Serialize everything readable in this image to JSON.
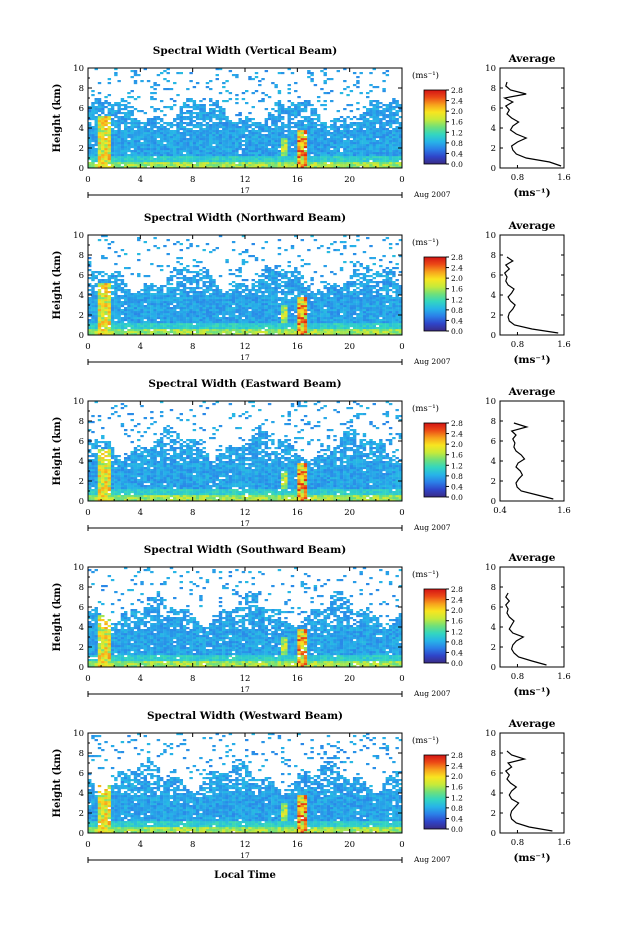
{
  "figure": {
    "xlabel": "Local Time",
    "date_day": "17",
    "date_month": "Aug 2007"
  },
  "colorscale": {
    "unit": "(ms⁻¹)",
    "ticks": [
      "0.0",
      "0.4",
      "0.8",
      "1.2",
      "1.6",
      "2.0",
      "2.4",
      "2.8"
    ],
    "stops": [
      "#3a2b86",
      "#2f45c9",
      "#2b7fe8",
      "#27b4e8",
      "#33d6c0",
      "#6fe07a",
      "#c6ea3a",
      "#f8e520",
      "#f7a21c",
      "#ec4a16",
      "#d41414"
    ]
  },
  "chart_data": [
    {
      "type": "heatmap",
      "title": "Spectral Width (Vertical Beam)",
      "ylabel": "Height (km)",
      "xlim": [
        0,
        24
      ],
      "ylim": [
        0,
        10
      ],
      "x_ticks": [
        "0",
        "4",
        "8",
        "12",
        "16",
        "20",
        "0"
      ],
      "y_ticks": [
        "0",
        "2",
        "4",
        "6",
        "8",
        "10"
      ],
      "profile": {
        "title": "Average",
        "xlabel": "(ms⁻¹)",
        "xlim": [
          0.5,
          1.6
        ],
        "x_ticks": [
          "0.8",
          "1.6"
        ],
        "y_ticks": [
          "0",
          "2",
          "4",
          "6",
          "8",
          "10"
        ],
        "heights": [
          0.2,
          0.6,
          1.0,
          1.4,
          1.8,
          2.2,
          2.6,
          3.0,
          3.4,
          3.8,
          4.2,
          4.6,
          5.0,
          5.4,
          5.8,
          6.2,
          6.6,
          7.0,
          7.4,
          7.8,
          8.2,
          8.6
        ],
        "values": [
          1.55,
          1.35,
          0.95,
          0.78,
          0.72,
          0.7,
          0.8,
          0.95,
          0.78,
          0.68,
          0.72,
          0.82,
          0.7,
          0.62,
          0.66,
          0.6,
          0.72,
          0.58,
          0.95,
          0.68,
          0.6,
          0.62
        ]
      }
    },
    {
      "type": "heatmap",
      "title": "Spectral Width (Northward Beam)",
      "ylabel": "Height (km)",
      "xlim": [
        0,
        24
      ],
      "ylim": [
        0,
        10
      ],
      "x_ticks": [
        "0",
        "4",
        "8",
        "12",
        "16",
        "20",
        "0"
      ],
      "y_ticks": [
        "0",
        "2",
        "4",
        "6",
        "8",
        "10"
      ],
      "profile": {
        "title": "Average",
        "xlabel": "(ms⁻¹)",
        "xlim": [
          0.5,
          1.6
        ],
        "x_ticks": [
          "0.8",
          "1.6"
        ],
        "y_ticks": [
          "0",
          "2",
          "4",
          "6",
          "8",
          "10"
        ],
        "heights": [
          0.2,
          0.6,
          1.0,
          1.4,
          1.8,
          2.2,
          2.6,
          3.0,
          3.4,
          3.8,
          4.2,
          4.6,
          5.0,
          5.4,
          5.8,
          6.2,
          6.6,
          7.0,
          7.4,
          7.8
        ],
        "values": [
          1.5,
          1.05,
          0.75,
          0.66,
          0.64,
          0.66,
          0.72,
          0.76,
          0.68,
          0.64,
          0.7,
          0.74,
          0.64,
          0.6,
          0.62,
          0.58,
          0.66,
          0.6,
          0.72,
          0.62
        ]
      }
    },
    {
      "type": "heatmap",
      "title": "Spectral Width (Eastward Beam)",
      "ylabel": "Height (km)",
      "xlim": [
        0,
        24
      ],
      "ylim": [
        0,
        10
      ],
      "x_ticks": [
        "0",
        "4",
        "8",
        "12",
        "16",
        "20",
        "0"
      ],
      "y_ticks": [
        "0",
        "2",
        "4",
        "6",
        "8",
        "10"
      ],
      "profile": {
        "title": "Average",
        "xlabel": "",
        "xlim": [
          0.4,
          1.6
        ],
        "x_ticks": [
          "0.4",
          "1.6"
        ],
        "y_ticks": [
          "0",
          "2",
          "4",
          "6",
          "8",
          "10"
        ],
        "heights": [
          0.2,
          0.6,
          1.0,
          1.4,
          1.8,
          2.2,
          2.6,
          3.0,
          3.4,
          3.8,
          4.2,
          4.6,
          5.0,
          5.4,
          5.8,
          6.2,
          6.6,
          7.0,
          7.4,
          7.8
        ],
        "values": [
          1.4,
          1.1,
          0.8,
          0.72,
          0.7,
          0.75,
          0.82,
          0.78,
          0.7,
          0.74,
          0.86,
          0.8,
          0.7,
          0.66,
          0.68,
          0.64,
          0.7,
          0.62,
          0.9,
          0.66
        ]
      }
    },
    {
      "type": "heatmap",
      "title": "Spectral Width (Southward Beam)",
      "ylabel": "Height (km)",
      "xlim": [
        0,
        24
      ],
      "ylim": [
        0,
        10
      ],
      "x_ticks": [
        "0",
        "4",
        "8",
        "12",
        "16",
        "20",
        "0"
      ],
      "y_ticks": [
        "0",
        "2",
        "4",
        "6",
        "8",
        "10"
      ],
      "profile": {
        "title": "Average",
        "xlabel": "(ms⁻¹)",
        "xlim": [
          0.5,
          1.6
        ],
        "x_ticks": [
          "0.8",
          "1.6"
        ],
        "y_ticks": [
          "0",
          "2",
          "4",
          "6",
          "8",
          "10"
        ],
        "heights": [
          0.2,
          0.6,
          1.0,
          1.4,
          1.8,
          2.2,
          2.6,
          3.0,
          3.4,
          3.8,
          4.2,
          4.6,
          5.0,
          5.4,
          5.8,
          6.2,
          6.6,
          7.0,
          7.4
        ],
        "values": [
          1.3,
          1.05,
          0.82,
          0.74,
          0.7,
          0.72,
          0.78,
          0.9,
          0.72,
          0.66,
          0.7,
          0.74,
          0.66,
          0.62,
          0.64,
          0.6,
          0.66,
          0.6,
          0.64
        ]
      }
    },
    {
      "type": "heatmap",
      "title": "Spectral Width (Westward Beam)",
      "ylabel": "Height (km)",
      "xlim": [
        0,
        24
      ],
      "ylim": [
        0,
        10
      ],
      "x_ticks": [
        "0",
        "4",
        "8",
        "12",
        "16",
        "20",
        "0"
      ],
      "y_ticks": [
        "0",
        "2",
        "4",
        "6",
        "8",
        "10"
      ],
      "profile": {
        "title": "Average",
        "xlabel": "(ms⁻¹)",
        "xlim": [
          0.5,
          1.6
        ],
        "x_ticks": [
          "0.8",
          "1.6"
        ],
        "y_ticks": [
          "0",
          "2",
          "4",
          "6",
          "8",
          "10"
        ],
        "heights": [
          0.2,
          0.6,
          1.0,
          1.4,
          1.8,
          2.2,
          2.6,
          3.0,
          3.4,
          3.8,
          4.2,
          4.6,
          5.0,
          5.4,
          5.8,
          6.2,
          6.6,
          7.0,
          7.4,
          7.8,
          8.2
        ],
        "values": [
          1.4,
          1.0,
          0.78,
          0.7,
          0.68,
          0.7,
          0.76,
          0.82,
          0.7,
          0.66,
          0.7,
          0.78,
          0.68,
          0.62,
          0.66,
          0.6,
          0.7,
          0.64,
          0.92,
          0.7,
          0.62
        ]
      }
    }
  ]
}
